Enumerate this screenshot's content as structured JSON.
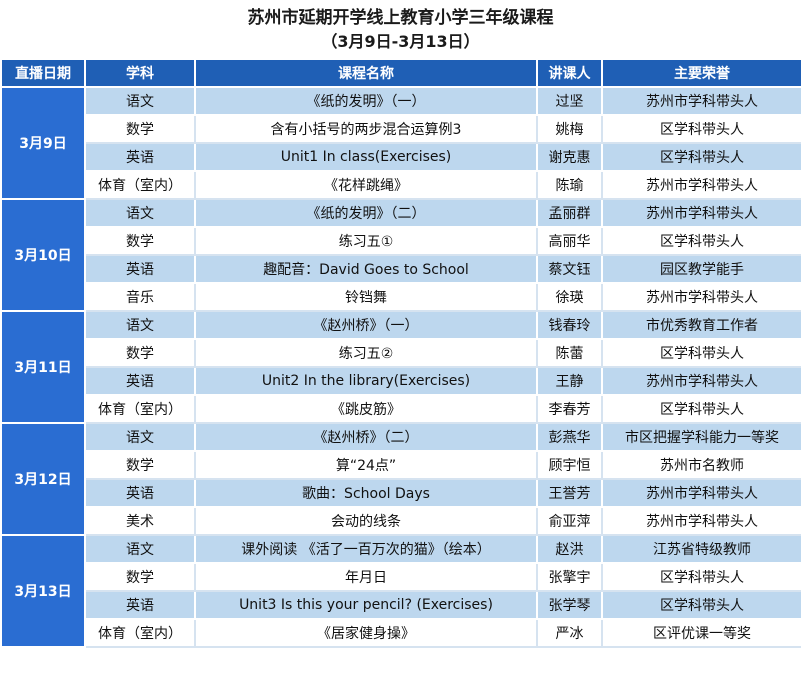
{
  "header": {
    "title": "苏州市延期开学线上教育小学三年级课程",
    "subtitle": "（3月9日-3月13日）"
  },
  "table": {
    "columns": [
      "直播日期",
      "学科",
      "课程名称",
      "讲课人",
      "主要荣誉"
    ],
    "days": [
      {
        "date": "3月9日",
        "rows": [
          [
            "语文",
            "《纸的发明》（一）",
            "过坚",
            "苏州市学科带头人"
          ],
          [
            "数学",
            "含有小括号的两步混合运算例3",
            "姚梅",
            "区学科带头人"
          ],
          [
            "英语",
            "Unit1 In class(Exercises)",
            "谢克惠",
            "区学科带头人"
          ],
          [
            "体育（室内）",
            "《花样跳绳》",
            "陈瑜",
            "苏州市学科带头人"
          ]
        ]
      },
      {
        "date": "3月10日",
        "rows": [
          [
            "语文",
            "《纸的发明》（二）",
            "孟丽群",
            "苏州市学科带头人"
          ],
          [
            "数学",
            "练习五①",
            "高丽华",
            "区学科带头人"
          ],
          [
            "英语",
            "趣配音：David Goes to School",
            "蔡文钰",
            "园区教学能手"
          ],
          [
            "音乐",
            "铃铛舞",
            "徐瑛",
            "苏州市学科带头人"
          ]
        ]
      },
      {
        "date": "3月11日",
        "rows": [
          [
            "语文",
            "《赵州桥》（一）",
            "钱春玲",
            "市优秀教育工作者"
          ],
          [
            "数学",
            "练习五②",
            "陈蕾",
            "区学科带头人"
          ],
          [
            "英语",
            "Unit2 In the library(Exercises)",
            "王静",
            "苏州市学科带头人"
          ],
          [
            "体育（室内）",
            "《跳皮筋》",
            "李春芳",
            "区学科带头人"
          ]
        ]
      },
      {
        "date": "3月12日",
        "rows": [
          [
            "语文",
            "《赵州桥》（二）",
            "彭燕华",
            "市区把握学科能力一等奖"
          ],
          [
            "数学",
            "算“24点”",
            "顾宇恒",
            "苏州市名教师"
          ],
          [
            "英语",
            "歌曲：School Days",
            "王誉芳",
            "苏州市学科带头人"
          ],
          [
            "美术",
            "会动的线条",
            "俞亚萍",
            "苏州市学科带头人"
          ]
        ]
      },
      {
        "date": "3月13日",
        "rows": [
          [
            "语文",
            "课外阅读 《活了一百万次的猫》（绘本）",
            "赵洪",
            "江苏省特级教师"
          ],
          [
            "数学",
            "年月日",
            "张擎宇",
            "区学科带头人"
          ],
          [
            "英语",
            "Unit3 Is this your pencil? (Exercises)",
            "张学琴",
            "区学科带头人"
          ],
          [
            "体育（室内）",
            "《居家健身操》",
            "严冰",
            "区评优课一等奖"
          ]
        ]
      }
    ]
  }
}
